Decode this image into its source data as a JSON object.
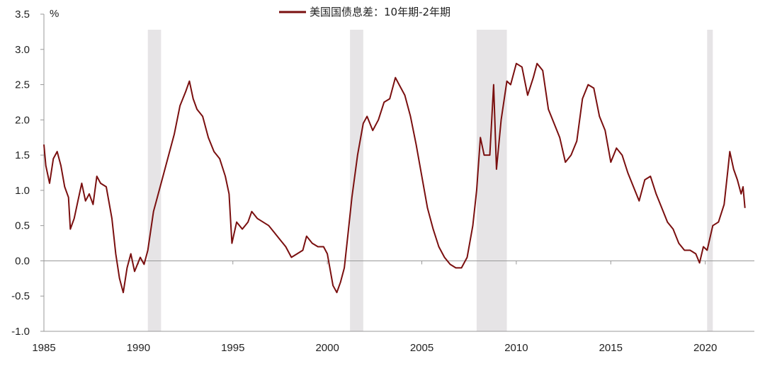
{
  "chart_data": {
    "type": "line",
    "unit_label": "%",
    "legend_placement": "top-center",
    "grid": false,
    "xlim": [
      1985.0,
      2022.6
    ],
    "ylim": [
      -1.0,
      3.5
    ],
    "yticks": [
      -1.0,
      -0.5,
      0.0,
      0.5,
      1.0,
      1.5,
      2.0,
      2.5,
      3.0,
      3.5
    ],
    "ytick_labels": [
      "-1.0",
      "-0.5",
      "0.0",
      "0.5",
      "1.0",
      "1.5",
      "2.0",
      "2.5",
      "3.0",
      "3.5"
    ],
    "xticks": [
      1985,
      1990,
      1995,
      2000,
      2005,
      2010,
      2015,
      2020
    ],
    "xtick_labels": [
      "1985",
      "1990",
      "1995",
      "2000",
      "2005",
      "2010",
      "2015",
      "2020"
    ],
    "recessions": [
      {
        "start": 1990.5,
        "end": 1991.2
      },
      {
        "start": 2001.2,
        "end": 2001.9
      },
      {
        "start": 2007.9,
        "end": 2009.5
      },
      {
        "start": 2020.1,
        "end": 2020.4
      }
    ],
    "series": [
      {
        "name": "美国国债息差：10年期-2年期",
        "color": "#7a0f0f",
        "points": [
          [
            1985.0,
            1.65
          ],
          [
            1985.1,
            1.35
          ],
          [
            1985.3,
            1.1
          ],
          [
            1985.5,
            1.45
          ],
          [
            1985.7,
            1.55
          ],
          [
            1985.9,
            1.35
          ],
          [
            1986.1,
            1.05
          ],
          [
            1986.3,
            0.9
          ],
          [
            1986.4,
            0.45
          ],
          [
            1986.6,
            0.6
          ],
          [
            1986.8,
            0.85
          ],
          [
            1987.0,
            1.1
          ],
          [
            1987.2,
            0.85
          ],
          [
            1987.4,
            0.95
          ],
          [
            1987.6,
            0.8
          ],
          [
            1987.8,
            1.2
          ],
          [
            1988.0,
            1.1
          ],
          [
            1988.3,
            1.05
          ],
          [
            1988.6,
            0.6
          ],
          [
            1988.8,
            0.1
          ],
          [
            1989.0,
            -0.25
          ],
          [
            1989.2,
            -0.45
          ],
          [
            1989.4,
            -0.1
          ],
          [
            1989.6,
            0.1
          ],
          [
            1989.8,
            -0.15
          ],
          [
            1990.1,
            0.05
          ],
          [
            1990.3,
            -0.05
          ],
          [
            1990.5,
            0.15
          ],
          [
            1990.8,
            0.7
          ],
          [
            1991.0,
            0.9
          ],
          [
            1991.3,
            1.2
          ],
          [
            1991.6,
            1.5
          ],
          [
            1991.9,
            1.8
          ],
          [
            1992.2,
            2.2
          ],
          [
            1992.5,
            2.4
          ],
          [
            1992.7,
            2.55
          ],
          [
            1992.9,
            2.3
          ],
          [
            1993.1,
            2.15
          ],
          [
            1993.4,
            2.05
          ],
          [
            1993.7,
            1.75
          ],
          [
            1994.0,
            1.55
          ],
          [
            1994.3,
            1.45
          ],
          [
            1994.6,
            1.2
          ],
          [
            1994.8,
            0.95
          ],
          [
            1994.95,
            0.25
          ],
          [
            1995.2,
            0.55
          ],
          [
            1995.5,
            0.45
          ],
          [
            1995.8,
            0.55
          ],
          [
            1996.0,
            0.7
          ],
          [
            1996.3,
            0.6
          ],
          [
            1996.6,
            0.55
          ],
          [
            1996.9,
            0.5
          ],
          [
            1997.2,
            0.4
          ],
          [
            1997.5,
            0.3
          ],
          [
            1997.8,
            0.2
          ],
          [
            1998.1,
            0.05
          ],
          [
            1998.4,
            0.1
          ],
          [
            1998.7,
            0.15
          ],
          [
            1998.9,
            0.35
          ],
          [
            1999.2,
            0.25
          ],
          [
            1999.5,
            0.2
          ],
          [
            1999.8,
            0.2
          ],
          [
            2000.0,
            0.1
          ],
          [
            2000.3,
            -0.35
          ],
          [
            2000.5,
            -0.45
          ],
          [
            2000.7,
            -0.3
          ],
          [
            2000.9,
            -0.1
          ],
          [
            2001.1,
            0.4
          ],
          [
            2001.3,
            0.9
          ],
          [
            2001.6,
            1.5
          ],
          [
            2001.9,
            1.95
          ],
          [
            2002.1,
            2.05
          ],
          [
            2002.4,
            1.85
          ],
          [
            2002.7,
            2.0
          ],
          [
            2003.0,
            2.25
          ],
          [
            2003.3,
            2.3
          ],
          [
            2003.6,
            2.6
          ],
          [
            2003.8,
            2.5
          ],
          [
            2004.1,
            2.35
          ],
          [
            2004.4,
            2.05
          ],
          [
            2004.7,
            1.65
          ],
          [
            2005.0,
            1.2
          ],
          [
            2005.3,
            0.75
          ],
          [
            2005.6,
            0.45
          ],
          [
            2005.9,
            0.2
          ],
          [
            2006.2,
            0.05
          ],
          [
            2006.5,
            -0.05
          ],
          [
            2006.8,
            -0.1
          ],
          [
            2007.1,
            -0.1
          ],
          [
            2007.4,
            0.05
          ],
          [
            2007.7,
            0.5
          ],
          [
            2007.9,
            1.0
          ],
          [
            2008.1,
            1.75
          ],
          [
            2008.3,
            1.5
          ],
          [
            2008.6,
            1.5
          ],
          [
            2008.8,
            2.5
          ],
          [
            2008.95,
            1.3
          ],
          [
            2009.2,
            2.0
          ],
          [
            2009.5,
            2.55
          ],
          [
            2009.7,
            2.5
          ],
          [
            2010.0,
            2.8
          ],
          [
            2010.3,
            2.75
          ],
          [
            2010.6,
            2.35
          ],
          [
            2010.9,
            2.6
          ],
          [
            2011.1,
            2.8
          ],
          [
            2011.4,
            2.7
          ],
          [
            2011.7,
            2.15
          ],
          [
            2012.0,
            1.95
          ],
          [
            2012.3,
            1.75
          ],
          [
            2012.6,
            1.4
          ],
          [
            2012.9,
            1.5
          ],
          [
            2013.2,
            1.7
          ],
          [
            2013.5,
            2.3
          ],
          [
            2013.8,
            2.5
          ],
          [
            2014.1,
            2.45
          ],
          [
            2014.4,
            2.05
          ],
          [
            2014.7,
            1.85
          ],
          [
            2015.0,
            1.4
          ],
          [
            2015.3,
            1.6
          ],
          [
            2015.6,
            1.5
          ],
          [
            2015.9,
            1.25
          ],
          [
            2016.2,
            1.05
          ],
          [
            2016.5,
            0.85
          ],
          [
            2016.8,
            1.15
          ],
          [
            2017.1,
            1.2
          ],
          [
            2017.4,
            0.95
          ],
          [
            2017.7,
            0.75
          ],
          [
            2018.0,
            0.55
          ],
          [
            2018.3,
            0.45
          ],
          [
            2018.6,
            0.25
          ],
          [
            2018.9,
            0.15
          ],
          [
            2019.2,
            0.15
          ],
          [
            2019.5,
            0.1
          ],
          [
            2019.7,
            -0.03
          ],
          [
            2019.9,
            0.2
          ],
          [
            2020.1,
            0.15
          ],
          [
            2020.4,
            0.5
          ],
          [
            2020.7,
            0.55
          ],
          [
            2021.0,
            0.8
          ],
          [
            2021.2,
            1.3
          ],
          [
            2021.3,
            1.55
          ],
          [
            2021.5,
            1.3
          ],
          [
            2021.7,
            1.15
          ],
          [
            2021.9,
            0.95
          ],
          [
            2022.0,
            1.05
          ],
          [
            2022.1,
            0.75
          ]
        ]
      }
    ]
  }
}
